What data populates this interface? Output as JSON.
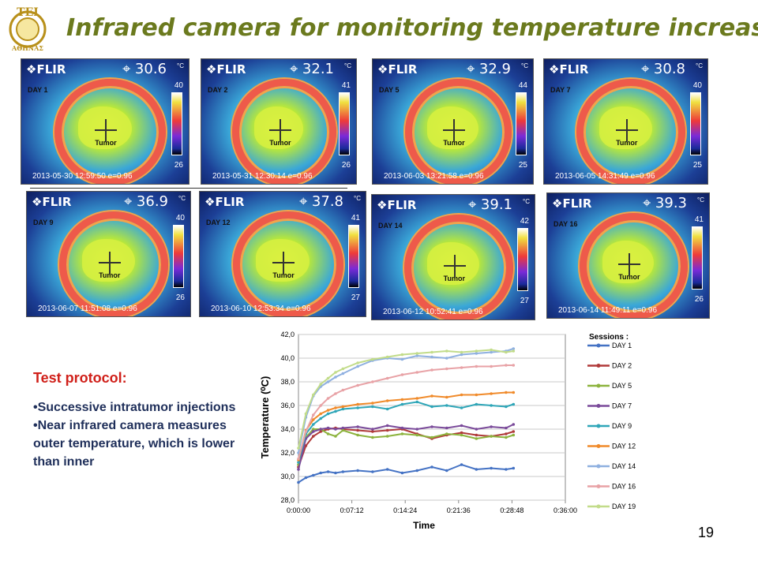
{
  "title": "Infrared camera for monitoring temperature increase",
  "logo": {
    "text_top": "ΤΕΙ",
    "text_bottom": "ΑΘΗΝΑΣ"
  },
  "thermal_images": [
    {
      "brand": "FLIR",
      "temp": "30.6",
      "unit": "°C",
      "day": "DAY 1",
      "scale_max": "40",
      "scale_min": "26",
      "stamp": "2013-05-30 12:59:50  e=0.96",
      "tumor": "Tumor"
    },
    {
      "brand": "FLIR",
      "temp": "32.1",
      "unit": "°C",
      "day": "DAY 2",
      "scale_max": "41",
      "scale_min": "26",
      "stamp": "2013-05-31 12:30:14  e=0.96",
      "tumor": "Tumor"
    },
    {
      "brand": "FLIR",
      "temp": "32.9",
      "unit": "°C",
      "day": "DAY 5",
      "scale_max": "44",
      "scale_min": "25",
      "stamp": "2013-06-03 13:21:58  e=0.96",
      "tumor": "Tumor"
    },
    {
      "brand": "FLIR",
      "temp": "30.8",
      "unit": "°C",
      "day": "DAY 7",
      "scale_max": "40",
      "scale_min": "25",
      "stamp": "2013-06-05 14:31:49  e=0.96",
      "tumor": "Tumor"
    },
    {
      "brand": "FLIR",
      "temp": "36.9",
      "unit": "°C",
      "day": "DAY 9",
      "scale_max": "40",
      "scale_min": "26",
      "stamp": "2013-06-07 11:51:08  e=0.96",
      "tumor": "Tumor"
    },
    {
      "brand": "FLIR",
      "temp": "37.8",
      "unit": "°C",
      "day": "DAY 12",
      "scale_max": "41",
      "scale_min": "27",
      "stamp": "2013-06-10 12:53:34  e=0.96",
      "tumor": "Tumor"
    },
    {
      "brand": "FLIR",
      "temp": "39.1",
      "unit": "°C",
      "day": "DAY 14",
      "scale_max": "42",
      "scale_min": "27",
      "stamp": "2013-06-12 10:52:41  e=0.96",
      "tumor": "Tumor"
    },
    {
      "brand": "FLIR",
      "temp": "39.3",
      "unit": "°C",
      "day": "DAY 16",
      "scale_max": "41",
      "scale_min": "26",
      "stamp": "2013-06-14 11:49:11  e=0.96",
      "tumor": "Tumor"
    }
  ],
  "protocol": {
    "title": "Test protocol:",
    "bullets": [
      "•Successive intratumor injections",
      "•Near infrared camera measures outer temperature, which is lower than inner"
    ]
  },
  "page_number": "19",
  "chart_data": {
    "type": "line",
    "xlabel": "Time",
    "ylabel": "Temperature  (⁰C)",
    "legend_title": "Sessions :",
    "legend_position": "right",
    "grid": true,
    "x_unit": "minutes",
    "xlim": [
      0,
      36
    ],
    "ylim": [
      28,
      42
    ],
    "x_ticks": [
      "0:00:00",
      "0:07:12",
      "0:14:24",
      "0:21:36",
      "0:28:48",
      "0:36:00"
    ],
    "y_ticks": [
      "28,0",
      "30,0",
      "32,0",
      "34,0",
      "36,0",
      "38,0",
      "40,0",
      "42,0"
    ],
    "x": [
      0,
      1,
      2,
      3,
      4,
      5,
      6,
      8,
      10,
      12,
      14,
      16,
      18,
      20,
      22,
      24,
      26,
      28,
      29
    ],
    "series": [
      {
        "name": "DAY 1",
        "color": "#4472c4",
        "marker": "diamond",
        "values": [
          29.5,
          29.9,
          30.1,
          30.3,
          30.4,
          30.3,
          30.4,
          30.5,
          30.4,
          30.6,
          30.3,
          30.5,
          30.8,
          30.5,
          31.0,
          30.6,
          30.7,
          30.6,
          30.7
        ]
      },
      {
        "name": "DAY 2",
        "color": "#b03a3a",
        "marker": "square",
        "values": [
          30.8,
          32.6,
          33.4,
          33.8,
          34.0,
          34.1,
          34.0,
          33.9,
          33.8,
          33.9,
          34.0,
          33.6,
          33.2,
          33.5,
          33.7,
          33.5,
          33.4,
          33.6,
          33.8
        ]
      },
      {
        "name": "DAY 5",
        "color": "#8db33e",
        "marker": "triangle",
        "values": [
          31.0,
          33.3,
          34.0,
          34.0,
          33.6,
          33.4,
          33.9,
          33.5,
          33.3,
          33.4,
          33.6,
          33.5,
          33.3,
          33.6,
          33.5,
          33.2,
          33.4,
          33.3,
          33.5
        ]
      },
      {
        "name": "DAY 7",
        "color": "#7a4a9a",
        "marker": "x",
        "values": [
          30.6,
          33.2,
          33.8,
          34.0,
          34.1,
          34.0,
          34.1,
          34.2,
          34.0,
          34.3,
          34.1,
          34.0,
          34.2,
          34.1,
          34.3,
          34.0,
          34.2,
          34.1,
          34.4
        ]
      },
      {
        "name": "DAY 9",
        "color": "#2fa6b8",
        "marker": "star",
        "values": [
          31.2,
          33.6,
          34.4,
          34.9,
          35.3,
          35.5,
          35.7,
          35.8,
          35.9,
          35.7,
          36.1,
          36.3,
          35.9,
          36.0,
          35.8,
          36.1,
          36.0,
          35.9,
          36.1
        ]
      },
      {
        "name": "DAY 12",
        "color": "#f08a2a",
        "marker": "circle",
        "values": [
          31.4,
          33.9,
          34.8,
          35.3,
          35.6,
          35.8,
          35.9,
          36.1,
          36.2,
          36.4,
          36.5,
          36.6,
          36.8,
          36.7,
          36.9,
          36.9,
          37.0,
          37.1,
          37.1
        ]
      },
      {
        "name": "DAY 14",
        "color": "#8fb0e0",
        "marker": "plus",
        "values": [
          32.0,
          35.0,
          36.8,
          37.6,
          38.0,
          38.4,
          38.7,
          39.3,
          39.8,
          40.0,
          39.9,
          40.2,
          40.1,
          40.0,
          40.3,
          40.4,
          40.5,
          40.6,
          40.8
        ]
      },
      {
        "name": "DAY 16",
        "color": "#e8a2a6",
        "marker": "dash",
        "values": [
          31.5,
          33.8,
          35.2,
          36.0,
          36.6,
          37.0,
          37.3,
          37.7,
          38.0,
          38.3,
          38.6,
          38.8,
          39.0,
          39.1,
          39.2,
          39.3,
          39.3,
          39.4,
          39.4
        ]
      },
      {
        "name": "DAY 19",
        "color": "#c2dc8a",
        "marker": "dash",
        "values": [
          32.4,
          35.3,
          36.9,
          37.8,
          38.3,
          38.8,
          39.1,
          39.6,
          39.9,
          40.1,
          40.3,
          40.4,
          40.5,
          40.6,
          40.5,
          40.6,
          40.7,
          40.5,
          40.6
        ]
      }
    ]
  }
}
